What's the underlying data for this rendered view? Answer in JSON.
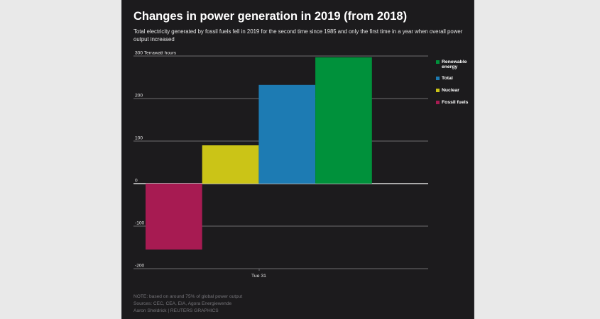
{
  "header": {
    "title": "Changes in power generation in 2019 (from 2018)",
    "subtitle": "Total electricity generated by fossil fuels fell in 2019 for the second time since 1985 and only the first time in a year when overall power output increased"
  },
  "chart_data": {
    "type": "bar",
    "title": "Changes in power generation in 2019 (from 2018)",
    "ylabel": "Terrawatt hours",
    "ylim": [
      -200,
      300
    ],
    "yticks": [
      {
        "value": 300,
        "label": "300 Terrawatt hours"
      },
      {
        "value": 200,
        "label": "200"
      },
      {
        "value": 100,
        "label": "100"
      },
      {
        "value": 0,
        "label": "0"
      },
      {
        "value": -100,
        "label": "-100"
      },
      {
        "value": -200,
        "label": "-200"
      }
    ],
    "xtick_label": "Tue 31",
    "grid": true,
    "legend_position": "right",
    "series": [
      {
        "name": "Fossil fuels",
        "value": -155,
        "color": "#a71b52"
      },
      {
        "name": "Nuclear",
        "value": 90,
        "color": "#cbc417"
      },
      {
        "name": "Total",
        "value": 232,
        "color": "#1d7bb3"
      },
      {
        "name": "Renewable energy",
        "value": 297,
        "color": "#00913b"
      }
    ]
  },
  "legend": {
    "items": [
      {
        "label": "Renewable energy",
        "color": "#00913b"
      },
      {
        "label": "Total",
        "color": "#1d7bb3"
      },
      {
        "label": "Nuclear",
        "color": "#cbc417"
      },
      {
        "label": "Fossil fuels",
        "color": "#a71b52"
      }
    ]
  },
  "footer": {
    "note": "NOTE: based on around 75% of global power output",
    "sources": "Sources: CEC, CEA, EIA, Agora Energiewende",
    "credit": "Aaron Sheldrick    | REUTERS GRAPHICS"
  }
}
